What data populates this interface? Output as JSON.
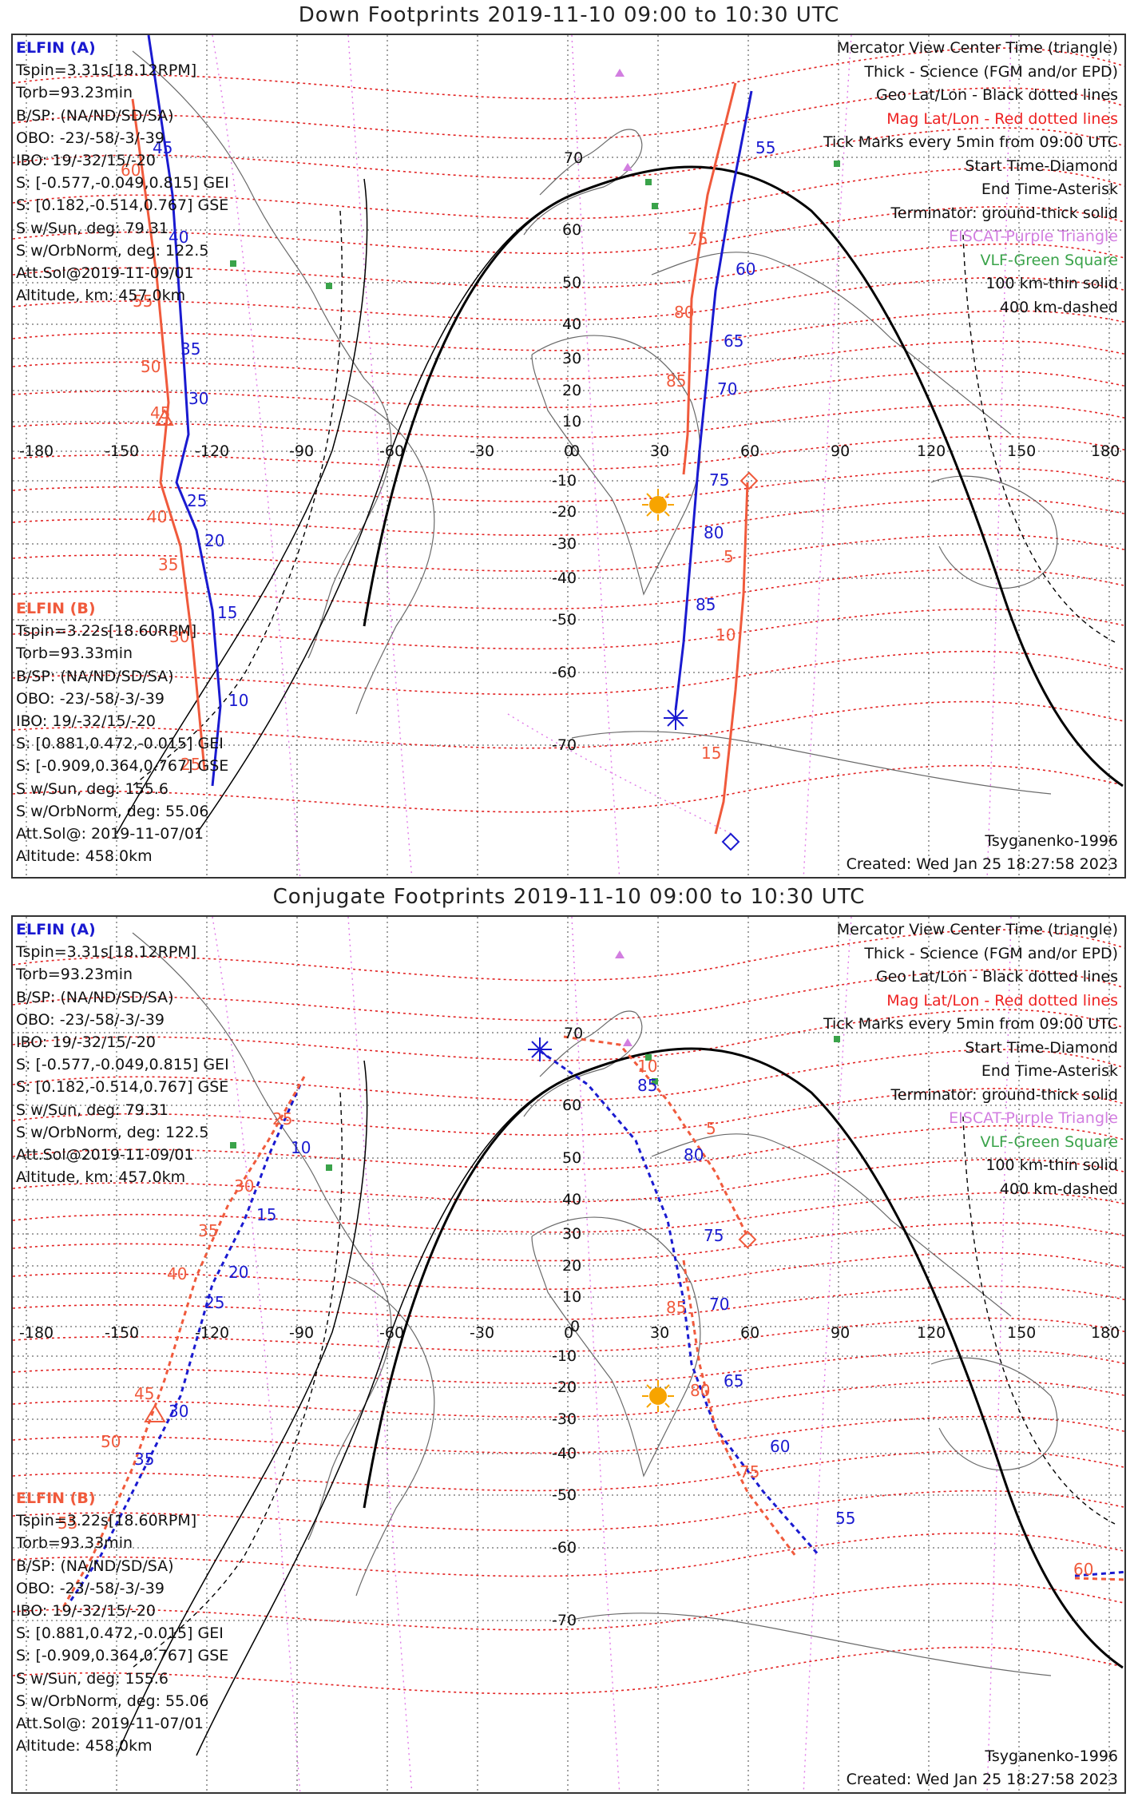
{
  "panels": [
    {
      "title": "Down Footprints 2019-11-10 09:00 to 10:30 UTC",
      "elfin_a": [
        "ELFIN (A)",
        "Tspin=3.31s[18.12RPM]",
        "Torb=93.23min",
        "B/SP: (NA/ND/SD/SA)",
        "OBO: -23/-58/-3/-39",
        "IBO: 19/-32/15/-20",
        "S: [-0.577,-0.049,0.815] GEI",
        "S: [0.182,-0.514,0.767] GSE",
        "S w/Sun, deg: 79.31",
        "S w/OrbNorm, deg: 122.5",
        "Att.Sol@2019-11-09/01",
        "Altitude, km: 457.0km"
      ],
      "elfin_b": [
        "ELFIN (B)",
        "Tspin=3.22s[18.60RPM]",
        "Torb=93.33min",
        "B/SP: (NA/ND/SD/SA)",
        "OBO: -23/-58/-3/-39",
        "IBO: 19/-32/15/-20",
        "S: [0.881,0.472,-0.015] GEI",
        "S: [-0.909,0.364,0.767] GSE",
        "S w/Sun, deg: 155.6",
        "S w/OrbNorm, deg: 55.06",
        "Att.Sol@: 2019-11-07/01",
        "Altitude: 458.0km"
      ],
      "legend": [
        {
          "text": "Mercator View Center Time (triangle)",
          "color": "#111111"
        },
        {
          "text": "Thick - Science (FGM and/or EPD)",
          "color": "#111111"
        },
        {
          "text": "Geo Lat/Lon - Black dotted lines",
          "color": "#111111"
        },
        {
          "text": "Mag Lat/Lon - Red dotted lines",
          "color": "#e22222"
        },
        {
          "text": "Tick Marks every 5min from 09:00 UTC",
          "color": "#111111"
        },
        {
          "text": "Start Time-Diamond",
          "color": "#111111"
        },
        {
          "text": "End Time-Asterisk",
          "color": "#111111"
        },
        {
          "text": "Terminator: ground-thick solid",
          "color": "#111111"
        },
        {
          "text": "EISCAT-Purple Triangle",
          "color": "#d27ee0"
        },
        {
          "text": "VLF-Green Square",
          "color": "#3aa34a"
        },
        {
          "text": "100 km-thin solid",
          "color": "#111111"
        },
        {
          "text": "400 km-dashed",
          "color": "#111111"
        }
      ],
      "model": "Tsyganenko-1996",
      "created": "Created: Wed Jan 25 18:27:58 2023",
      "lon_ticks": [
        "-180",
        "-150",
        "-120",
        "-90",
        "-60",
        "-30",
        "0",
        "30",
        "60",
        "90",
        "120",
        "150",
        "180"
      ],
      "lat_ticks": [
        "70",
        "60",
        "50",
        "40",
        "30",
        "20",
        "10",
        "0",
        "-10",
        "-20",
        "-30",
        "-40",
        "-50",
        "-60",
        "-70"
      ],
      "track_a_labels": [
        "45",
        "40",
        "35",
        "30",
        "25",
        "20",
        "15",
        "10",
        "55",
        "60",
        "65",
        "70",
        "75",
        "80",
        "85"
      ],
      "track_b_labels": [
        "60",
        "55",
        "50",
        "45",
        "40",
        "35",
        "30",
        "25",
        "75",
        "80",
        "85",
        "5",
        "10",
        "15"
      ]
    },
    {
      "title": "Conjugate Footprints 2019-11-10 09:00 to 10:30 UTC",
      "elfin_a": [
        "ELFIN (A)",
        "Tspin=3.31s[18.12RPM]",
        "Torb=93.23min",
        "B/SP: (NA/ND/SD/SA)",
        "OBO: -23/-58/-3/-39",
        "IBO: 19/-32/15/-20",
        "S: [-0.577,-0.049,0.815] GEI",
        "S: [0.182,-0.514,0.767] GSE",
        "S w/Sun, deg: 79.31",
        "S w/OrbNorm, deg: 122.5",
        "Att.Sol@2019-11-09/01",
        "Altitude, km: 457.0km"
      ],
      "elfin_b": [
        "ELFIN (B)",
        "Tspin=3.22s[18.60RPM]",
        "Torb=93.33min",
        "B/SP: (NA/ND/SD/SA)",
        "OBO: -23/-58/-3/-39",
        "IBO: 19/-32/15/-20",
        "S: [0.881,0.472,-0.015] GEI",
        "S: [-0.909,0.364,0.767] GSE",
        "S w/Sun, deg: 155.6",
        "S w/OrbNorm, deg: 55.06",
        "Att.Sol@: 2019-11-07/01",
        "Altitude: 458.0km"
      ],
      "legend": [
        {
          "text": "Mercator View Center Time (triangle)",
          "color": "#111111"
        },
        {
          "text": "Thick - Science (FGM and/or EPD)",
          "color": "#111111"
        },
        {
          "text": "Geo Lat/Lon - Black dotted lines",
          "color": "#111111"
        },
        {
          "text": "Mag Lat/Lon - Red dotted lines",
          "color": "#e22222"
        },
        {
          "text": "Tick Marks every 5min from 09:00 UTC",
          "color": "#111111"
        },
        {
          "text": "Start Time-Diamond",
          "color": "#111111"
        },
        {
          "text": "End Time-Asterisk",
          "color": "#111111"
        },
        {
          "text": "Terminator: ground-thick solid",
          "color": "#111111"
        },
        {
          "text": "EISCAT-Purple Triangle",
          "color": "#d27ee0"
        },
        {
          "text": "VLF-Green Square",
          "color": "#3aa34a"
        },
        {
          "text": "100 km-thin solid",
          "color": "#111111"
        },
        {
          "text": "400 km-dashed",
          "color": "#111111"
        }
      ],
      "model": "Tsyganenko-1996",
      "created": "Created: Wed Jan 25 18:27:58 2023",
      "lon_ticks": [
        "-180",
        "-150",
        "-120",
        "-90",
        "-60",
        "-30",
        "0",
        "30",
        "60",
        "90",
        "120",
        "150",
        "180"
      ],
      "lat_ticks": [
        "70",
        "60",
        "50",
        "40",
        "30",
        "20",
        "10",
        "0",
        "-10",
        "-20",
        "-30",
        "-40",
        "-50",
        "-60",
        "-70"
      ],
      "track_a_labels": [
        "10",
        "15",
        "20",
        "25",
        "30",
        "35",
        "85",
        "80",
        "75",
        "70",
        "65",
        "60",
        "55"
      ],
      "track_b_labels": [
        "25",
        "30",
        "35",
        "40",
        "45",
        "50",
        "55",
        "10",
        "5",
        "85",
        "80",
        "75",
        "60"
      ]
    }
  ],
  "colors": {
    "elfin_a": "#1a1ad0",
    "elfin_b": "#f05a3c",
    "mag_grid": "#e22222",
    "terminator": "#000000",
    "sun": "#f7a400",
    "eiscat": "#d27ee0",
    "vlf": "#3aa34a"
  }
}
